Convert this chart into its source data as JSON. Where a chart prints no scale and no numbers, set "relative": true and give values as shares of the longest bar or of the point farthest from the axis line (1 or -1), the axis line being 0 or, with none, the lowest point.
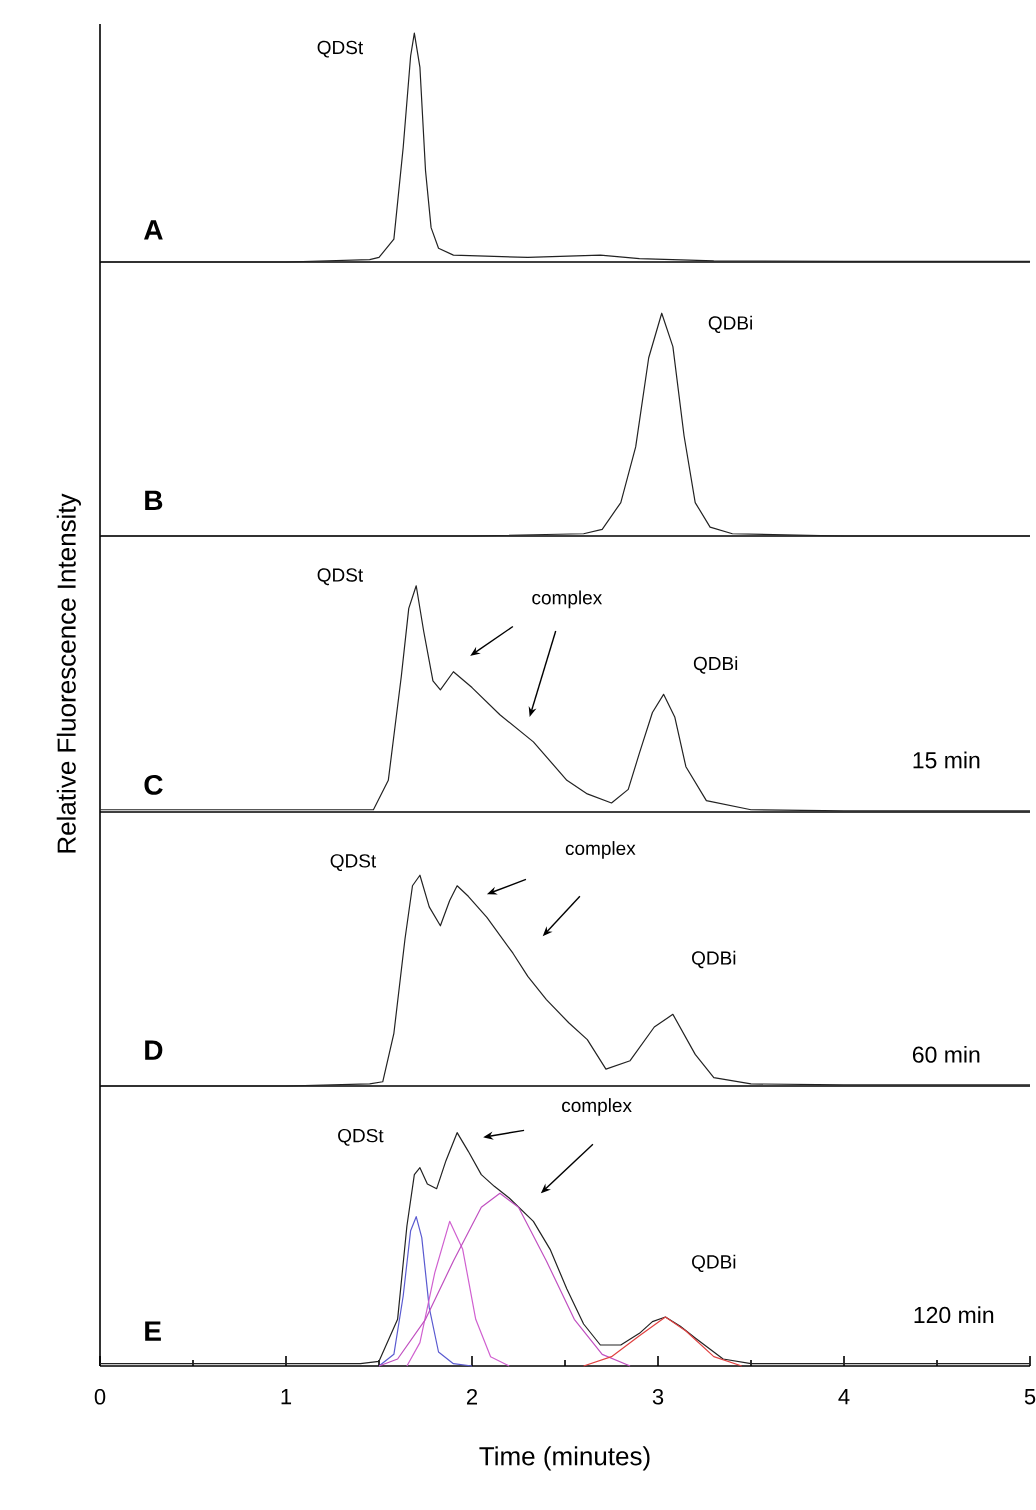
{
  "chart_data": [
    {
      "type": "line",
      "relative": true,
      "xlim": [
        0,
        5
      ],
      "xticks": [
        0,
        1,
        2,
        3,
        4,
        5
      ],
      "tick_labels": false,
      "color": "#222222",
      "x": [
        0,
        1.0,
        1.45,
        1.5,
        1.58,
        1.63,
        1.67,
        1.69,
        1.72,
        1.75,
        1.78,
        1.82,
        1.9,
        2.3,
        2.69,
        2.9,
        3.3,
        4.0,
        5.0
      ],
      "values": [
        0,
        0,
        0.01,
        0.02,
        0.1,
        0.5,
        0.9,
        1,
        0.85,
        0.4,
        0.15,
        0.06,
        0.03,
        0.02,
        0.03,
        0.015,
        0.005,
        0.003,
        0.003
      ],
      "annotations": [
        "A",
        "QDSt"
      ]
    },
    {
      "type": "line",
      "relative": true,
      "xlim": [
        0,
        5
      ],
      "xticks": [
        0,
        1,
        2,
        3,
        4,
        5
      ],
      "tick_labels": false,
      "color": "#222222",
      "x": [
        0,
        2.0,
        2.6,
        2.7,
        2.8,
        2.88,
        2.95,
        3.02,
        3.08,
        3.14,
        3.2,
        3.28,
        3.4,
        4.0,
        5.0
      ],
      "values": [
        0,
        0,
        0.01,
        0.03,
        0.15,
        0.4,
        0.8,
        1,
        0.85,
        0.45,
        0.15,
        0.04,
        0.01,
        0,
        0
      ],
      "annotations": [
        "B",
        "QDBi"
      ]
    },
    {
      "type": "line",
      "relative": true,
      "xlim": [
        0,
        5
      ],
      "xticks": [
        0,
        1,
        2,
        3,
        4,
        5
      ],
      "tick_labels": false,
      "color": "#222222",
      "ylabel": "Relative Fluorescence Intensity",
      "x": [
        0,
        1.0,
        1.47,
        1.55,
        1.62,
        1.66,
        1.7,
        1.74,
        1.79,
        1.83,
        1.9,
        2.0,
        2.15,
        2.33,
        2.51,
        2.62,
        2.75,
        2.84,
        2.9,
        2.97,
        3.03,
        3.09,
        3.15,
        3.26,
        3.5,
        4.0,
        5.0
      ],
      "values": [
        0.01,
        0.01,
        0.01,
        0.14,
        0.6,
        0.9,
        1,
        0.8,
        0.58,
        0.54,
        0.62,
        0.55,
        0.43,
        0.31,
        0.14,
        0.08,
        0.04,
        0.1,
        0.26,
        0.44,
        0.52,
        0.42,
        0.2,
        0.05,
        0.01,
        0.005,
        0.005
      ],
      "annotations": [
        "C",
        "QDSt",
        "complex",
        "QDBi",
        "15 min"
      ]
    },
    {
      "type": "line",
      "relative": true,
      "xlim": [
        0,
        5
      ],
      "xticks": [
        0,
        1,
        2,
        3,
        4,
        5
      ],
      "tick_labels": false,
      "color": "#222222",
      "x": [
        0,
        1.0,
        1.45,
        1.52,
        1.58,
        1.64,
        1.68,
        1.72,
        1.77,
        1.83,
        1.88,
        1.92,
        1.98,
        2.08,
        2.22,
        2.3,
        2.4,
        2.52,
        2.62,
        2.72,
        2.85,
        2.98,
        3.08,
        3.2,
        3.3,
        3.5,
        4.0,
        5.0
      ],
      "values": [
        0,
        0,
        0.01,
        0.02,
        0.25,
        0.7,
        0.95,
        1,
        0.85,
        0.76,
        0.88,
        0.95,
        0.9,
        0.8,
        0.63,
        0.52,
        0.41,
        0.3,
        0.22,
        0.08,
        0.12,
        0.28,
        0.34,
        0.15,
        0.04,
        0.01,
        0.005,
        0.005
      ],
      "annotations": [
        "D",
        "QDSt",
        "complex",
        "QDBi",
        "60 min"
      ]
    },
    {
      "type": "line",
      "relative": true,
      "xlim": [
        0,
        5
      ],
      "xticks": [
        0,
        1,
        2,
        3,
        4,
        5
      ],
      "tick_labels": "x",
      "xlabel": "Time (minutes)",
      "series": [
        {
          "color": "#222222",
          "x": [
            0,
            1.4,
            1.5,
            1.6,
            1.65,
            1.69,
            1.72,
            1.76,
            1.81,
            1.86,
            1.92,
            1.98,
            2.05,
            2.12,
            2.2,
            2.33,
            2.42,
            2.51,
            2.6,
            2.69,
            2.8,
            2.9,
            2.97,
            3.04,
            3.12,
            3.2,
            3.35,
            3.5,
            4.0,
            5.0
          ],
          "values": [
            0.01,
            0.01,
            0.02,
            0.2,
            0.6,
            0.82,
            0.85,
            0.78,
            0.76,
            0.88,
            1,
            0.92,
            0.82,
            0.77,
            0.72,
            0.62,
            0.5,
            0.33,
            0.18,
            0.09,
            0.09,
            0.14,
            0.19,
            0.21,
            0.17,
            0.12,
            0.03,
            0.01,
            0.01,
            0.01
          ]
        },
        {
          "color": "#5a5ad0",
          "x": [
            1.5,
            1.58,
            1.63,
            1.67,
            1.7,
            1.73,
            1.77,
            1.82,
            1.9,
            2.0
          ],
          "values": [
            0,
            0.05,
            0.3,
            0.58,
            0.64,
            0.55,
            0.25,
            0.06,
            0.01,
            0
          ]
        },
        {
          "color": "#d060d0",
          "x": [
            1.65,
            1.72,
            1.8,
            1.88,
            1.95,
            2.02,
            2.1,
            2.2
          ],
          "values": [
            0,
            0.1,
            0.4,
            0.62,
            0.5,
            0.2,
            0.04,
            0
          ]
        },
        {
          "color": "#c050c0",
          "x": [
            1.5,
            1.6,
            1.75,
            1.9,
            2.05,
            2.15,
            2.25,
            2.4,
            2.55,
            2.7,
            2.85
          ],
          "values": [
            0,
            0.03,
            0.2,
            0.45,
            0.68,
            0.74,
            0.68,
            0.45,
            0.2,
            0.05,
            0
          ]
        },
        {
          "color": "#e04040",
          "x": [
            2.6,
            2.75,
            2.9,
            3.04,
            3.15,
            3.3,
            3.45
          ],
          "values": [
            0,
            0.04,
            0.13,
            0.21,
            0.15,
            0.04,
            0
          ]
        }
      ],
      "annotations": [
        "E",
        "QDSt",
        "complex",
        "QDBi",
        "120 min"
      ]
    }
  ]
}
